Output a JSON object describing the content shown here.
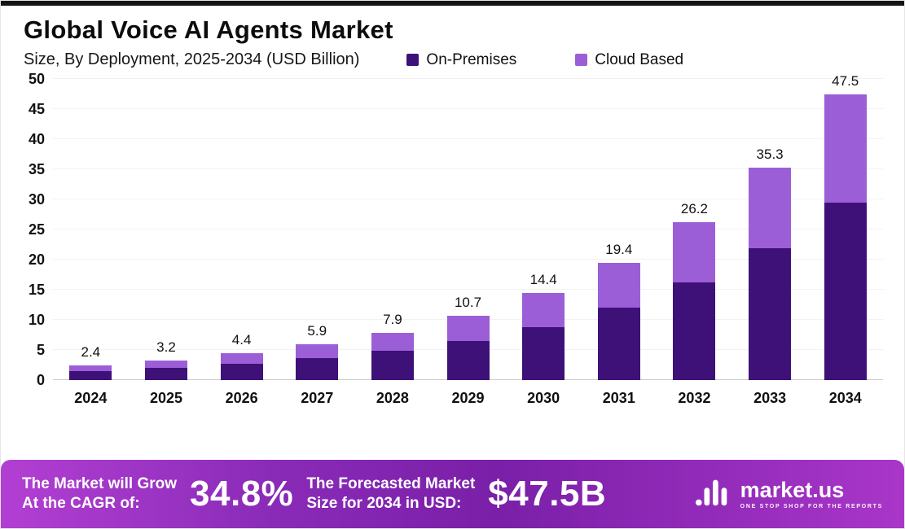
{
  "chart_data": {
    "type": "bar",
    "stacked": true,
    "title": "Global Voice AI Agents Market",
    "subtitle": "Size, By Deployment, 2025-2034 (USD Billion)",
    "categories": [
      "2024",
      "2025",
      "2026",
      "2027",
      "2028",
      "2029",
      "2030",
      "2031",
      "2032",
      "2033",
      "2034"
    ],
    "series": [
      {
        "name": "On-Premises",
        "color": "#3d1178",
        "values": [
          1.5,
          2.0,
          2.7,
          3.6,
          4.8,
          6.5,
          8.8,
          12.0,
          16.2,
          21.9,
          29.5
        ]
      },
      {
        "name": "Cloud Based",
        "color": "#9c5ed7",
        "values": [
          0.9,
          1.2,
          1.7,
          2.3,
          3.1,
          4.2,
          5.6,
          7.4,
          10.0,
          13.4,
          18.0
        ]
      }
    ],
    "totals": [
      2.4,
      3.2,
      4.4,
      5.9,
      7.9,
      10.7,
      14.4,
      19.4,
      26.2,
      35.3,
      47.5
    ],
    "ylim": [
      0,
      50
    ],
    "ytick_step": 5,
    "grid": true,
    "legend_position": "top-right"
  },
  "banner": {
    "cagr_label_line1": "The Market will Grow",
    "cagr_label_line2": "At the CAGR of:",
    "cagr_value": "34.8%",
    "forecast_label_line1": "The Forecasted Market",
    "forecast_label_line2": "Size for 2034 in USD:",
    "forecast_value": "$47.5B",
    "brand": "market.us",
    "brand_tagline": "ONE STOP SHOP FOR THE REPORTS"
  },
  "colors": {
    "on_premises": "#3d1178",
    "cloud_based": "#9c5ed7",
    "banner_gradient_left": "#b23fd3",
    "banner_gradient_mid": "#7a1fa8",
    "banner_gradient_right": "#a936c9",
    "top_strip": "#141414"
  }
}
